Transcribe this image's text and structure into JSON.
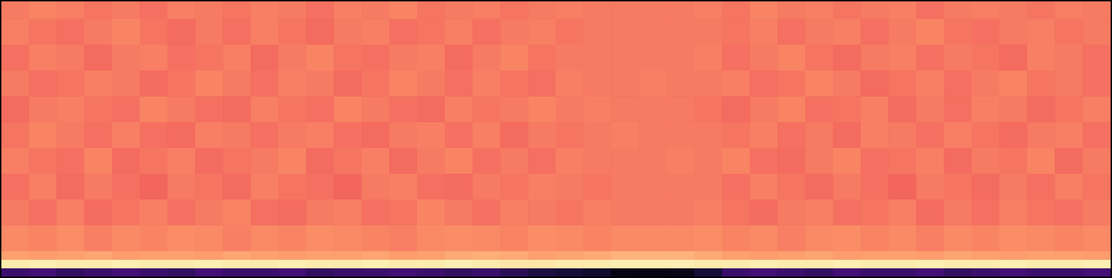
{
  "chart_data": {
    "type": "heatmap",
    "color": "magma",
    "tick_labels": false,
    "xlim": [
      0,
      40
    ],
    "ylim": [
      0,
      32
    ],
    "x_bins": [
      0,
      1,
      2,
      3,
      4,
      5,
      6,
      7,
      8,
      9,
      10,
      11,
      12,
      13,
      14,
      15,
      16,
      17,
      18,
      19,
      20,
      21,
      22,
      23,
      24,
      25,
      26,
      27,
      28,
      29,
      30,
      31,
      32,
      33,
      34,
      35,
      36,
      37,
      38,
      39,
      40
    ],
    "y_bins": [
      0,
      1,
      2,
      3,
      6,
      9,
      12,
      15,
      18,
      21,
      24,
      27,
      30,
      32
    ],
    "color_range": [
      0,
      1
    ],
    "cells": [
      [
        0.2,
        0.22,
        0.18,
        0.2,
        0.22,
        0.2,
        0.18,
        0.22,
        0.2,
        0.2,
        0.22,
        0.18,
        0.2,
        0.2,
        0.22,
        0.2,
        0.18,
        0.2,
        0.16,
        0.12,
        0.1,
        0.08,
        0.03,
        0.03,
        0.04,
        0.1,
        0.2,
        0.22,
        0.2,
        0.18,
        0.22,
        0.2,
        0.2,
        0.22,
        0.18,
        0.2,
        0.22,
        0.2,
        0.2,
        0.22
      ],
      [
        0.96,
        0.97,
        0.96,
        0.96,
        0.97,
        0.96,
        0.96,
        0.97,
        0.96,
        0.96,
        0.97,
        0.96,
        0.96,
        0.97,
        0.96,
        0.96,
        0.97,
        0.96,
        0.95,
        0.95,
        0.96,
        0.96,
        0.97,
        0.97,
        0.97,
        0.96,
        0.96,
        0.97,
        0.96,
        0.96,
        0.97,
        0.96,
        0.96,
        0.97,
        0.96,
        0.96,
        0.97,
        0.96,
        0.96,
        0.97
      ],
      [
        0.8,
        0.79,
        0.8,
        0.81,
        0.79,
        0.8,
        0.8,
        0.79,
        0.81,
        0.8,
        0.79,
        0.8,
        0.8,
        0.81,
        0.79,
        0.8,
        0.82,
        0.83,
        0.82,
        0.8,
        0.81,
        0.82,
        0.84,
        0.84,
        0.84,
        0.82,
        0.8,
        0.79,
        0.8,
        0.81,
        0.79,
        0.8,
        0.8,
        0.79,
        0.81,
        0.8,
        0.79,
        0.8,
        0.8,
        0.79
      ],
      [
        0.75,
        0.74,
        0.76,
        0.73,
        0.75,
        0.74,
        0.76,
        0.75,
        0.73,
        0.75,
        0.74,
        0.76,
        0.75,
        0.74,
        0.73,
        0.75,
        0.76,
        0.75,
        0.74,
        0.76,
        0.75,
        0.74,
        0.75,
        0.75,
        0.75,
        0.76,
        0.74,
        0.75,
        0.73,
        0.75,
        0.76,
        0.74,
        0.75,
        0.73,
        0.75,
        0.74,
        0.76,
        0.75,
        0.74,
        0.75
      ],
      [
        0.72,
        0.7,
        0.73,
        0.69,
        0.71,
        0.73,
        0.7,
        0.72,
        0.74,
        0.7,
        0.69,
        0.72,
        0.73,
        0.7,
        0.71,
        0.74,
        0.72,
        0.7,
        0.73,
        0.72,
        0.71,
        0.73,
        0.72,
        0.72,
        0.72,
        0.73,
        0.71,
        0.69,
        0.72,
        0.73,
        0.7,
        0.71,
        0.73,
        0.69,
        0.72,
        0.7,
        0.73,
        0.71,
        0.7,
        0.72
      ],
      [
        0.7,
        0.73,
        0.69,
        0.72,
        0.7,
        0.68,
        0.72,
        0.71,
        0.69,
        0.73,
        0.71,
        0.7,
        0.68,
        0.72,
        0.73,
        0.7,
        0.69,
        0.72,
        0.71,
        0.73,
        0.72,
        0.71,
        0.72,
        0.72,
        0.72,
        0.72,
        0.7,
        0.73,
        0.71,
        0.69,
        0.72,
        0.7,
        0.68,
        0.72,
        0.71,
        0.69,
        0.72,
        0.7,
        0.73,
        0.71
      ],
      [
        0.73,
        0.71,
        0.7,
        0.74,
        0.69,
        0.71,
        0.73,
        0.69,
        0.71,
        0.72,
        0.74,
        0.69,
        0.71,
        0.73,
        0.69,
        0.72,
        0.74,
        0.7,
        0.72,
        0.7,
        0.73,
        0.72,
        0.72,
        0.72,
        0.73,
        0.72,
        0.74,
        0.7,
        0.69,
        0.72,
        0.74,
        0.7,
        0.71,
        0.73,
        0.69,
        0.72,
        0.71,
        0.74,
        0.69,
        0.72
      ],
      [
        0.71,
        0.74,
        0.72,
        0.7,
        0.73,
        0.7,
        0.69,
        0.73,
        0.72,
        0.7,
        0.72,
        0.73,
        0.7,
        0.69,
        0.72,
        0.73,
        0.7,
        0.73,
        0.69,
        0.72,
        0.71,
        0.72,
        0.73,
        0.72,
        0.72,
        0.72,
        0.71,
        0.73,
        0.7,
        0.72,
        0.69,
        0.73,
        0.72,
        0.7,
        0.73,
        0.71,
        0.69,
        0.72,
        0.73,
        0.7
      ],
      [
        0.69,
        0.72,
        0.73,
        0.71,
        0.7,
        0.74,
        0.72,
        0.7,
        0.69,
        0.73,
        0.71,
        0.7,
        0.74,
        0.72,
        0.7,
        0.69,
        0.73,
        0.71,
        0.72,
        0.74,
        0.72,
        0.73,
        0.72,
        0.72,
        0.72,
        0.71,
        0.69,
        0.72,
        0.74,
        0.7,
        0.71,
        0.73,
        0.69,
        0.72,
        0.7,
        0.73,
        0.72,
        0.69,
        0.71,
        0.73
      ],
      [
        0.72,
        0.7,
        0.71,
        0.73,
        0.72,
        0.69,
        0.71,
        0.74,
        0.72,
        0.7,
        0.73,
        0.72,
        0.69,
        0.71,
        0.74,
        0.72,
        0.7,
        0.73,
        0.71,
        0.7,
        0.73,
        0.72,
        0.72,
        0.73,
        0.72,
        0.72,
        0.73,
        0.7,
        0.71,
        0.74,
        0.72,
        0.69,
        0.71,
        0.73,
        0.7,
        0.72,
        0.74,
        0.71,
        0.72,
        0.7
      ],
      [
        0.7,
        0.73,
        0.72,
        0.69,
        0.72,
        0.73,
        0.7,
        0.71,
        0.73,
        0.69,
        0.72,
        0.74,
        0.71,
        0.7,
        0.72,
        0.73,
        0.69,
        0.72,
        0.74,
        0.71,
        0.72,
        0.72,
        0.72,
        0.72,
        0.72,
        0.73,
        0.7,
        0.72,
        0.74,
        0.71,
        0.69,
        0.72,
        0.73,
        0.7,
        0.72,
        0.71,
        0.69,
        0.73,
        0.72,
        0.7
      ],
      [
        0.73,
        0.71,
        0.7,
        0.72,
        0.74,
        0.71,
        0.69,
        0.72,
        0.7,
        0.73,
        0.71,
        0.69,
        0.72,
        0.73,
        0.7,
        0.71,
        0.73,
        0.7,
        0.72,
        0.73,
        0.71,
        0.72,
        0.72,
        0.72,
        0.72,
        0.72,
        0.71,
        0.73,
        0.7,
        0.72,
        0.73,
        0.7,
        0.72,
        0.74,
        0.71,
        0.7,
        0.72,
        0.73,
        0.71,
        0.72
      ],
      [
        0.72,
        0.74,
        0.73,
        0.71,
        0.72,
        0.7,
        0.73,
        0.72,
        0.71,
        0.73,
        0.72,
        0.7,
        0.73,
        0.72,
        0.74,
        0.71,
        0.72,
        0.73,
        0.71,
        0.72,
        0.73,
        0.72,
        0.72,
        0.72,
        0.72,
        0.73,
        0.71,
        0.74,
        0.72,
        0.73,
        0.71,
        0.72,
        0.73,
        0.7,
        0.72,
        0.73,
        0.72,
        0.71,
        0.73,
        0.72
      ]
    ]
  }
}
